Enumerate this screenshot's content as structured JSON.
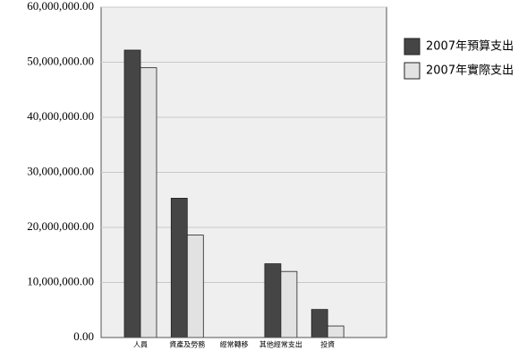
{
  "chart_data": {
    "type": "bar",
    "categories": [
      "人員",
      "資產及勞務",
      "經常轉移",
      "其他經常支出",
      "投資"
    ],
    "series": [
      {
        "name": "2007年預算支出",
        "color": "#454545",
        "values": [
          52200000,
          25300000,
          0,
          13400000,
          5100000
        ]
      },
      {
        "name": "2007年實際支出",
        "color": "#e2e2e2",
        "values": [
          49000000,
          18600000,
          0,
          12000000,
          2100000
        ]
      }
    ],
    "ylim": [
      0,
      60000000
    ],
    "yticks": [
      {
        "value": 0,
        "label": "0.00"
      },
      {
        "value": 10000000,
        "label": "10,000,000.00"
      },
      {
        "value": 20000000,
        "label": "20,000,000.00"
      },
      {
        "value": 30000000,
        "label": "30,000,000.00"
      },
      {
        "value": 40000000,
        "label": "40,000,000.00"
      },
      {
        "value": 50000000,
        "label": "50,000,000.00"
      },
      {
        "value": 60000000,
        "label": "60,000,000.00"
      }
    ],
    "grid": true
  }
}
